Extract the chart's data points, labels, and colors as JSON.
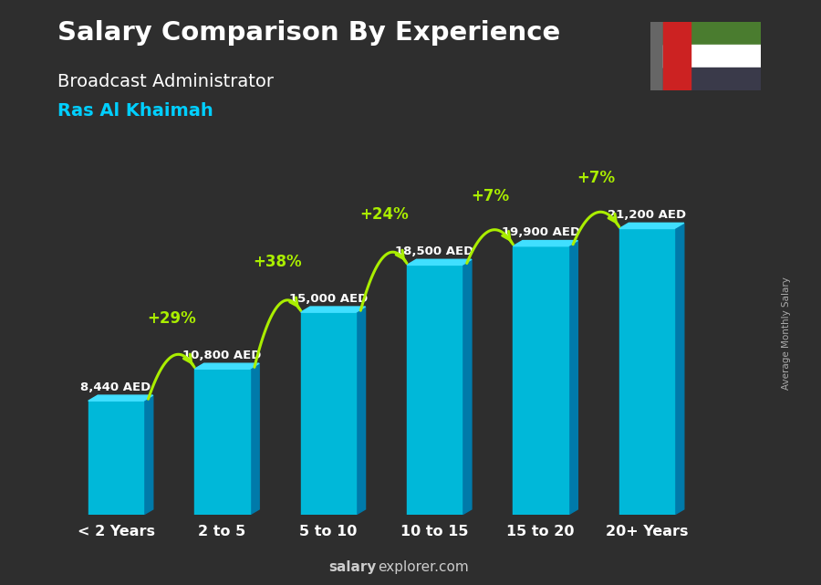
{
  "title": "Salary Comparison By Experience",
  "subtitle": "Broadcast Administrator",
  "location": "Ras Al Khaimah",
  "categories": [
    "< 2 Years",
    "2 to 5",
    "5 to 10",
    "10 to 15",
    "15 to 20",
    "20+ Years"
  ],
  "values": [
    8440,
    10800,
    15000,
    18500,
    19900,
    21200
  ],
  "labels": [
    "8,440 AED",
    "10,800 AED",
    "15,000 AED",
    "18,500 AED",
    "19,900 AED",
    "21,200 AED"
  ],
  "pct_changes": [
    "+29%",
    "+38%",
    "+24%",
    "+7%",
    "+7%"
  ],
  "bar_color_top": "#40dfff",
  "bar_color_mid": "#00b8d9",
  "bar_color_side": "#007aaa",
  "bg_color": "#2e2e2e",
  "title_color": "#ffffff",
  "subtitle_color": "#ffffff",
  "location_color": "#00cfff",
  "label_color": "#ffffff",
  "pct_color": "#aaee00",
  "xlabel_color": "#ffffff",
  "footer_bold": "salary",
  "footer_normal": "explorer.com",
  "ylabel_text": "Average Monthly Salary",
  "ylim": [
    0,
    26000
  ],
  "flag_colors": [
    "#cc2222",
    "#4a7c2f",
    "#ffffff",
    "#3a3a4a"
  ],
  "flag_bg": "#666666"
}
